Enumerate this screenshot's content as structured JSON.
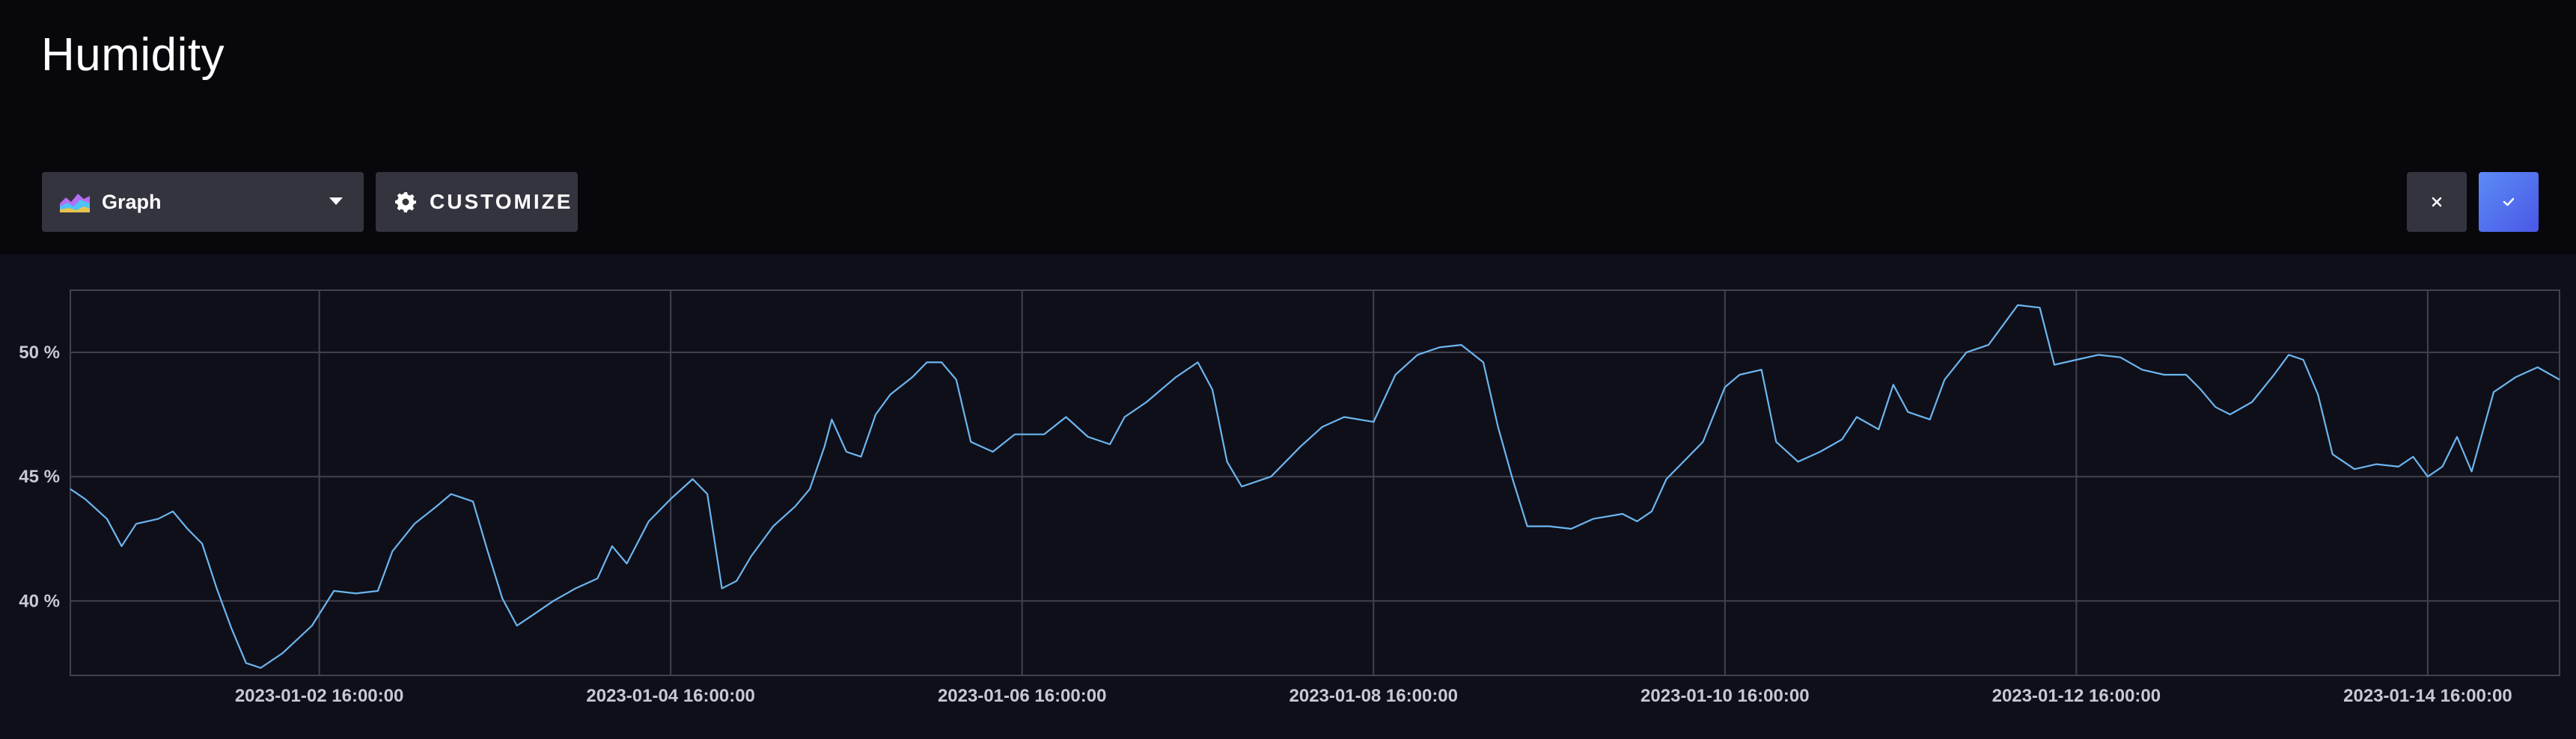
{
  "page": {
    "title": "Humidity"
  },
  "toolbar": {
    "visualization_select": {
      "label": "Graph",
      "icon": "graph-icon"
    },
    "customize_label": "CUSTOMIZE",
    "cancel_icon": "close-icon",
    "confirm_icon": "check-icon"
  },
  "colors": {
    "background": "#07070c",
    "chart_background": "#0f0f19",
    "line": "#6cb6f0",
    "grid": "#42424f",
    "button": "#34343f",
    "accent": "#5b8cf5"
  },
  "chart_data": {
    "type": "line",
    "ylim": [
      37,
      52.5
    ],
    "y_ticks": [
      {
        "value": 40,
        "label": "40 %"
      },
      {
        "value": 45,
        "label": "45 %"
      },
      {
        "value": 50,
        "label": "50 %"
      }
    ],
    "x_range": [
      "2023-01-01 06:00:00",
      "2023-01-15 10:00:00"
    ],
    "x_ticks": [
      {
        "value": "2023-01-02 16:00:00",
        "label": "2023-01-02 16:00:00"
      },
      {
        "value": "2023-01-04 16:00:00",
        "label": "2023-01-04 16:00:00"
      },
      {
        "value": "2023-01-06 16:00:00",
        "label": "2023-01-06 16:00:00"
      },
      {
        "value": "2023-01-08 16:00:00",
        "label": "2023-01-08 16:00:00"
      },
      {
        "value": "2023-01-10 16:00:00",
        "label": "2023-01-10 16:00:00"
      },
      {
        "value": "2023-01-12 16:00:00",
        "label": "2023-01-12 16:00:00"
      },
      {
        "value": "2023-01-14 16:00:00",
        "label": "2023-01-14 16:00:00"
      }
    ],
    "grid": true,
    "series": [
      {
        "points": [
          [
            "2023-01-01 06:00",
            44.5
          ],
          [
            "2023-01-01 08:00",
            44.1
          ],
          [
            "2023-01-01 11:00",
            43.3
          ],
          [
            "2023-01-01 13:00",
            42.2
          ],
          [
            "2023-01-01 15:00",
            43.1
          ],
          [
            "2023-01-01 18:00",
            43.3
          ],
          [
            "2023-01-01 20:00",
            43.6
          ],
          [
            "2023-01-01 22:00",
            42.9
          ],
          [
            "2023-01-02 00:00",
            42.3
          ],
          [
            "2023-01-02 02:00",
            40.5
          ],
          [
            "2023-01-02 04:00",
            38.9
          ],
          [
            "2023-01-02 06:00",
            37.5
          ],
          [
            "2023-01-02 08:00",
            37.3
          ],
          [
            "2023-01-02 11:00",
            37.9
          ],
          [
            "2023-01-02 15:00",
            39.0
          ],
          [
            "2023-01-02 18:00",
            40.4
          ],
          [
            "2023-01-02 21:00",
            40.3
          ],
          [
            "2023-01-03 00:00",
            40.4
          ],
          [
            "2023-01-03 02:00",
            42.0
          ],
          [
            "2023-01-03 05:00",
            43.1
          ],
          [
            "2023-01-03 08:00",
            43.8
          ],
          [
            "2023-01-03 10:00",
            44.3
          ],
          [
            "2023-01-03 13:00",
            44.0
          ],
          [
            "2023-01-03 15:00",
            42.0
          ],
          [
            "2023-01-03 17:00",
            40.1
          ],
          [
            "2023-01-03 19:00",
            39.0
          ],
          [
            "2023-01-03 21:00",
            39.4
          ],
          [
            "2023-01-04 00:00",
            40.0
          ],
          [
            "2023-01-04 03:00",
            40.5
          ],
          [
            "2023-01-04 06:00",
            40.9
          ],
          [
            "2023-01-04 08:00",
            42.2
          ],
          [
            "2023-01-04 10:00",
            41.5
          ],
          [
            "2023-01-04 13:00",
            43.2
          ],
          [
            "2023-01-04 16:00",
            44.1
          ],
          [
            "2023-01-04 19:00",
            44.9
          ],
          [
            "2023-01-04 21:00",
            44.3
          ],
          [
            "2023-01-04 23:00",
            40.5
          ],
          [
            "2023-01-05 01:00",
            40.8
          ],
          [
            "2023-01-05 03:00",
            41.8
          ],
          [
            "2023-01-05 06:00",
            43.0
          ],
          [
            "2023-01-05 09:00",
            43.8
          ],
          [
            "2023-01-05 11:00",
            44.5
          ],
          [
            "2023-01-05 13:00",
            46.2
          ],
          [
            "2023-01-05 14:00",
            47.3
          ],
          [
            "2023-01-05 16:00",
            46.0
          ],
          [
            "2023-01-05 18:00",
            45.8
          ],
          [
            "2023-01-05 20:00",
            47.5
          ],
          [
            "2023-01-05 22:00",
            48.3
          ],
          [
            "2023-01-06 01:00",
            49.0
          ],
          [
            "2023-01-06 03:00",
            49.6
          ],
          [
            "2023-01-06 05:00",
            49.6
          ],
          [
            "2023-01-06 07:00",
            48.9
          ],
          [
            "2023-01-06 09:00",
            46.4
          ],
          [
            "2023-01-06 12:00",
            46.0
          ],
          [
            "2023-01-06 15:00",
            46.7
          ],
          [
            "2023-01-06 19:00",
            46.7
          ],
          [
            "2023-01-06 22:00",
            47.4
          ],
          [
            "2023-01-07 01:00",
            46.6
          ],
          [
            "2023-01-07 04:00",
            46.3
          ],
          [
            "2023-01-07 06:00",
            47.4
          ],
          [
            "2023-01-07 09:00",
            48.0
          ],
          [
            "2023-01-07 13:00",
            49.0
          ],
          [
            "2023-01-07 16:00",
            49.6
          ],
          [
            "2023-01-07 18:00",
            48.5
          ],
          [
            "2023-01-07 20:00",
            45.6
          ],
          [
            "2023-01-07 22:00",
            44.6
          ],
          [
            "2023-01-08 02:00",
            45.0
          ],
          [
            "2023-01-08 06:00",
            46.2
          ],
          [
            "2023-01-08 09:00",
            47.0
          ],
          [
            "2023-01-08 12:00",
            47.4
          ],
          [
            "2023-01-08 16:00",
            47.2
          ],
          [
            "2023-01-08 19:00",
            49.1
          ],
          [
            "2023-01-08 22:00",
            49.9
          ],
          [
            "2023-01-09 01:00",
            50.2
          ],
          [
            "2023-01-09 04:00",
            50.3
          ],
          [
            "2023-01-09 07:00",
            49.6
          ],
          [
            "2023-01-09 09:00",
            47.0
          ],
          [
            "2023-01-09 11:00",
            44.9
          ],
          [
            "2023-01-09 13:00",
            43.0
          ],
          [
            "2023-01-09 16:00",
            43.0
          ],
          [
            "2023-01-09 19:00",
            42.9
          ],
          [
            "2023-01-09 22:00",
            43.3
          ],
          [
            "2023-01-10 02:00",
            43.5
          ],
          [
            "2023-01-10 04:00",
            43.2
          ],
          [
            "2023-01-10 06:00",
            43.6
          ],
          [
            "2023-01-10 08:00",
            44.9
          ],
          [
            "2023-01-10 10:00",
            45.5
          ],
          [
            "2023-01-10 13:00",
            46.4
          ],
          [
            "2023-01-10 16:00",
            48.6
          ],
          [
            "2023-01-10 18:00",
            49.1
          ],
          [
            "2023-01-10 21:00",
            49.3
          ],
          [
            "2023-01-10 23:00",
            46.4
          ],
          [
            "2023-01-11 02:00",
            45.6
          ],
          [
            "2023-01-11 05:00",
            46.0
          ],
          [
            "2023-01-11 08:00",
            46.5
          ],
          [
            "2023-01-11 10:00",
            47.4
          ],
          [
            "2023-01-11 13:00",
            46.9
          ],
          [
            "2023-01-11 15:00",
            48.7
          ],
          [
            "2023-01-11 17:00",
            47.6
          ],
          [
            "2023-01-11 20:00",
            47.3
          ],
          [
            "2023-01-11 22:00",
            48.9
          ],
          [
            "2023-01-12 01:00",
            50.0
          ],
          [
            "2023-01-12 04:00",
            50.3
          ],
          [
            "2023-01-12 08:00",
            51.9
          ],
          [
            "2023-01-12 11:00",
            51.8
          ],
          [
            "2023-01-12 13:00",
            49.5
          ],
          [
            "2023-01-12 16:00",
            49.7
          ],
          [
            "2023-01-12 19:00",
            49.9
          ],
          [
            "2023-01-12 22:00",
            49.8
          ],
          [
            "2023-01-13 01:00",
            49.3
          ],
          [
            "2023-01-13 04:00",
            49.1
          ],
          [
            "2023-01-13 07:00",
            49.1
          ],
          [
            "2023-01-13 09:00",
            48.5
          ],
          [
            "2023-01-13 11:00",
            47.8
          ],
          [
            "2023-01-13 13:00",
            47.5
          ],
          [
            "2023-01-13 16:00",
            48.0
          ],
          [
            "2023-01-13 19:00",
            49.1
          ],
          [
            "2023-01-13 21:00",
            49.9
          ],
          [
            "2023-01-13 23:00",
            49.7
          ],
          [
            "2023-01-14 01:00",
            48.3
          ],
          [
            "2023-01-14 03:00",
            45.9
          ],
          [
            "2023-01-14 06:00",
            45.3
          ],
          [
            "2023-01-14 09:00",
            45.5
          ],
          [
            "2023-01-14 12:00",
            45.4
          ],
          [
            "2023-01-14 14:00",
            45.8
          ],
          [
            "2023-01-14 16:00",
            45.0
          ],
          [
            "2023-01-14 18:00",
            45.4
          ],
          [
            "2023-01-14 20:00",
            46.6
          ],
          [
            "2023-01-14 22:00",
            45.2
          ],
          [
            "2023-01-15 01:00",
            48.4
          ],
          [
            "2023-01-15 04:00",
            49.0
          ],
          [
            "2023-01-15 07:00",
            49.4
          ],
          [
            "2023-01-15 10:00",
            48.9
          ],
          [
            "2023-01-15 10:00",
            48.9
          ]
        ]
      }
    ]
  }
}
